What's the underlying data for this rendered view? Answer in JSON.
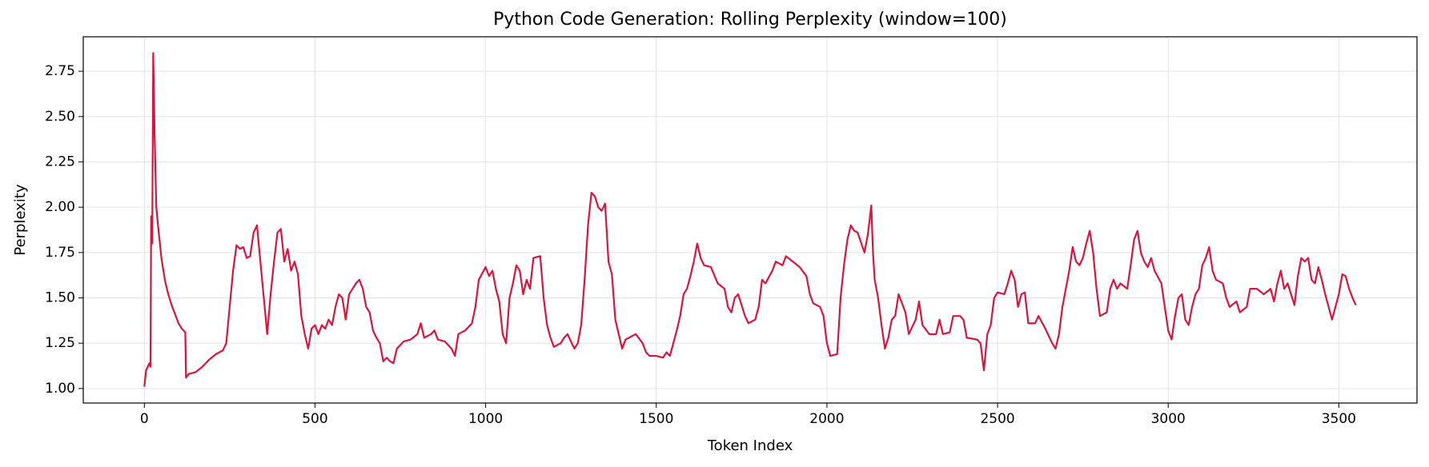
{
  "chart_data": {
    "type": "line",
    "title": "Python Code Generation: Rolling Perplexity (window=100)",
    "x_label": "Token Index",
    "y_label": "Perplexity",
    "x": [
      0,
      5,
      10,
      15,
      18,
      20,
      23,
      26,
      30,
      35,
      40,
      50,
      60,
      70,
      80,
      90,
      100,
      110,
      120,
      122,
      130,
      150,
      170,
      190,
      210,
      230,
      240,
      250,
      260,
      270,
      280,
      290,
      300,
      310,
      320,
      330,
      340,
      350,
      360,
      370,
      380,
      390,
      400,
      410,
      420,
      430,
      440,
      450,
      460,
      470,
      480,
      490,
      500,
      510,
      520,
      530,
      540,
      550,
      560,
      570,
      580,
      590,
      600,
      610,
      620,
      630,
      640,
      650,
      660,
      670,
      680,
      690,
      700,
      710,
      720,
      730,
      740,
      760,
      780,
      800,
      810,
      820,
      840,
      850,
      860,
      880,
      900,
      910,
      920,
      940,
      960,
      970,
      980,
      1000,
      1010,
      1020,
      1030,
      1040,
      1050,
      1060,
      1070,
      1080,
      1090,
      1100,
      1110,
      1120,
      1130,
      1140,
      1160,
      1170,
      1180,
      1190,
      1200,
      1220,
      1230,
      1240,
      1260,
      1270,
      1280,
      1290,
      1300,
      1310,
      1320,
      1330,
      1340,
      1350,
      1360,
      1370,
      1380,
      1390,
      1400,
      1410,
      1420,
      1440,
      1460,
      1470,
      1480,
      1500,
      1520,
      1530,
      1540,
      1550,
      1560,
      1570,
      1580,
      1590,
      1600,
      1610,
      1620,
      1630,
      1640,
      1660,
      1680,
      1700,
      1710,
      1720,
      1730,
      1740,
      1760,
      1770,
      1790,
      1800,
      1810,
      1820,
      1840,
      1850,
      1870,
      1880,
      1900,
      1920,
      1940,
      1950,
      1960,
      1980,
      1990,
      2000,
      2010,
      2030,
      2040,
      2050,
      2060,
      2070,
      2080,
      2090,
      2110,
      2120,
      2130,
      2135,
      2140,
      2150,
      2160,
      2170,
      2180,
      2190,
      2200,
      2210,
      2230,
      2240,
      2260,
      2270,
      2280,
      2300,
      2320,
      2330,
      2340,
      2360,
      2370,
      2390,
      2400,
      2410,
      2440,
      2450,
      2460,
      2470,
      2480,
      2490,
      2500,
      2520,
      2530,
      2540,
      2550,
      2560,
      2570,
      2580,
      2590,
      2610,
      2620,
      2640,
      2660,
      2670,
      2680,
      2690,
      2700,
      2710,
      2720,
      2730,
      2740,
      2750,
      2760,
      2770,
      2780,
      2790,
      2800,
      2820,
      2830,
      2840,
      2850,
      2860,
      2880,
      2890,
      2900,
      2910,
      2920,
      2930,
      2940,
      2950,
      2960,
      2980,
      2990,
      3000,
      3010,
      3020,
      3030,
      3040,
      3050,
      3060,
      3070,
      3080,
      3090,
      3100,
      3110,
      3120,
      3130,
      3140,
      3160,
      3170,
      3180,
      3200,
      3210,
      3230,
      3240,
      3260,
      3280,
      3300,
      3310,
      3320,
      3330,
      3340,
      3350,
      3360,
      3370,
      3380,
      3390,
      3400,
      3410,
      3420,
      3430,
      3440,
      3450,
      3460,
      3470,
      3480,
      3490,
      3500,
      3510,
      3520,
      3530,
      3540,
      3550
    ],
    "series": [
      {
        "name": "Rolling Perplexity",
        "color": "#dc143c",
        "values": [
          1.01,
          1.1,
          1.12,
          1.14,
          1.12,
          1.95,
          1.8,
          2.85,
          2.4,
          2.0,
          1.9,
          1.72,
          1.6,
          1.52,
          1.46,
          1.41,
          1.36,
          1.33,
          1.31,
          1.06,
          1.08,
          1.09,
          1.12,
          1.16,
          1.19,
          1.21,
          1.25,
          1.45,
          1.65,
          1.79,
          1.77,
          1.78,
          1.72,
          1.73,
          1.86,
          1.9,
          1.7,
          1.5,
          1.3,
          1.52,
          1.7,
          1.86,
          1.88,
          1.7,
          1.77,
          1.65,
          1.7,
          1.63,
          1.4,
          1.3,
          1.22,
          1.33,
          1.35,
          1.3,
          1.35,
          1.33,
          1.38,
          1.35,
          1.45,
          1.52,
          1.5,
          1.38,
          1.52,
          1.55,
          1.58,
          1.6,
          1.55,
          1.45,
          1.42,
          1.32,
          1.28,
          1.25,
          1.15,
          1.17,
          1.15,
          1.14,
          1.22,
          1.26,
          1.27,
          1.3,
          1.36,
          1.28,
          1.3,
          1.32,
          1.27,
          1.26,
          1.22,
          1.18,
          1.3,
          1.32,
          1.36,
          1.45,
          1.6,
          1.67,
          1.62,
          1.65,
          1.55,
          1.48,
          1.3,
          1.25,
          1.5,
          1.58,
          1.68,
          1.65,
          1.52,
          1.6,
          1.55,
          1.72,
          1.73,
          1.5,
          1.35,
          1.28,
          1.23,
          1.25,
          1.28,
          1.3,
          1.22,
          1.25,
          1.35,
          1.6,
          1.9,
          2.08,
          2.06,
          2.0,
          1.98,
          2.02,
          1.7,
          1.63,
          1.38,
          1.3,
          1.22,
          1.27,
          1.28,
          1.3,
          1.25,
          1.2,
          1.18,
          1.18,
          1.17,
          1.2,
          1.18,
          1.25,
          1.32,
          1.4,
          1.52,
          1.55,
          1.62,
          1.7,
          1.8,
          1.72,
          1.68,
          1.67,
          1.58,
          1.55,
          1.45,
          1.42,
          1.5,
          1.52,
          1.4,
          1.36,
          1.38,
          1.45,
          1.6,
          1.58,
          1.65,
          1.7,
          1.68,
          1.73,
          1.7,
          1.67,
          1.62,
          1.52,
          1.47,
          1.45,
          1.4,
          1.25,
          1.18,
          1.19,
          1.5,
          1.68,
          1.82,
          1.9,
          1.87,
          1.86,
          1.75,
          1.85,
          2.01,
          1.75,
          1.6,
          1.5,
          1.35,
          1.22,
          1.28,
          1.38,
          1.4,
          1.52,
          1.42,
          1.3,
          1.38,
          1.48,
          1.35,
          1.3,
          1.3,
          1.38,
          1.3,
          1.31,
          1.4,
          1.4,
          1.38,
          1.28,
          1.27,
          1.25,
          1.1,
          1.3,
          1.35,
          1.5,
          1.53,
          1.52,
          1.58,
          1.65,
          1.6,
          1.45,
          1.52,
          1.53,
          1.36,
          1.36,
          1.4,
          1.33,
          1.25,
          1.22,
          1.3,
          1.45,
          1.55,
          1.65,
          1.78,
          1.7,
          1.68,
          1.72,
          1.8,
          1.87,
          1.75,
          1.55,
          1.4,
          1.42,
          1.55,
          1.6,
          1.55,
          1.58,
          1.55,
          1.68,
          1.82,
          1.87,
          1.75,
          1.7,
          1.67,
          1.72,
          1.65,
          1.58,
          1.45,
          1.32,
          1.27,
          1.4,
          1.5,
          1.52,
          1.38,
          1.35,
          1.45,
          1.52,
          1.55,
          1.68,
          1.72,
          1.78,
          1.65,
          1.6,
          1.58,
          1.5,
          1.45,
          1.48,
          1.42,
          1.45,
          1.55,
          1.55,
          1.52,
          1.55,
          1.48,
          1.58,
          1.65,
          1.55,
          1.58,
          1.52,
          1.46,
          1.62,
          1.72,
          1.7,
          1.72,
          1.6,
          1.58,
          1.67,
          1.6,
          1.52,
          1.45,
          1.38,
          1.45,
          1.52,
          1.63,
          1.62,
          1.55,
          1.5,
          1.46
        ]
      }
    ],
    "xlim": [
      -179,
      3729
    ],
    "ylim": [
      0.92,
      2.94
    ],
    "xticks": [
      0,
      500,
      1000,
      1500,
      2000,
      2500,
      3000,
      3500
    ],
    "yticks": [
      {
        "value": 1,
        "label": "1.00"
      },
      {
        "value": 1.25,
        "label": "1.25"
      },
      {
        "value": 1.5,
        "label": "1.50"
      },
      {
        "value": 1.75,
        "label": "1.75"
      },
      {
        "value": 2,
        "label": "2.00"
      },
      {
        "value": 2.25,
        "label": "2.25"
      },
      {
        "value": 2.5,
        "label": "2.50"
      },
      {
        "value": 2.75,
        "label": "2.75"
      }
    ],
    "grid": true
  }
}
